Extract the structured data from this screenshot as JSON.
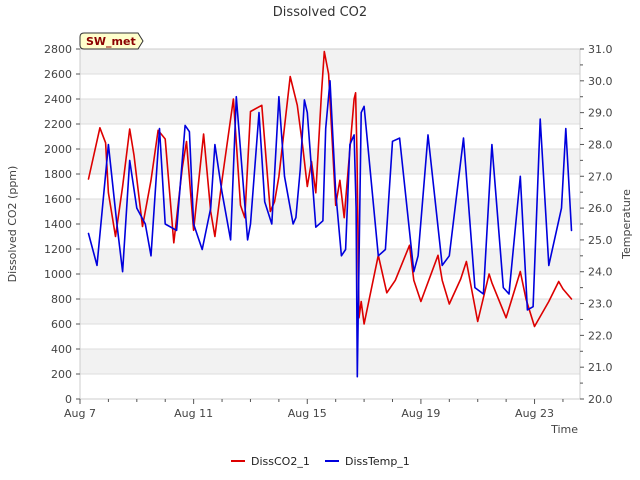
{
  "chart_data": {
    "type": "line",
    "title": "Dissolved CO2",
    "xlabel": "Time",
    "ylabel": "Dissolved CO2 (ppm)",
    "y2label": "Temperature",
    "station_label": "SW_met",
    "xlim": [
      7,
      24.6
    ],
    "ylim": [
      0,
      2800
    ],
    "y2lim": [
      20.0,
      31.0
    ],
    "x_ticks": [
      7,
      11,
      15,
      19,
      23
    ],
    "x_tick_labels": [
      "Aug 7",
      "Aug 11",
      "Aug 15",
      "Aug 19",
      "Aug 23"
    ],
    "y_ticks": [
      0,
      200,
      400,
      600,
      800,
      1000,
      1200,
      1400,
      1600,
      1800,
      2000,
      2200,
      2400,
      2600,
      2800
    ],
    "y2_ticks": [
      20.0,
      21.0,
      22.0,
      23.0,
      24.0,
      25.0,
      26.0,
      27.0,
      28.0,
      29.0,
      30.0,
      31.0
    ],
    "y2_tick_labels": [
      "20.0",
      "21.0",
      "22.0",
      "23.0",
      "24.0",
      "25.0",
      "26.0",
      "27.0",
      "28.0",
      "29.0",
      "30.0",
      "31.0"
    ],
    "legend_position": "bottom-center",
    "series": [
      {
        "name": "DissCO2_1",
        "color": "#dd0000",
        "axis": "left",
        "x": [
          7.3,
          7.7,
          7.9,
          8.0,
          8.25,
          8.5,
          8.75,
          8.9,
          9.2,
          9.5,
          9.75,
          10.0,
          10.3,
          10.6,
          10.75,
          11.0,
          11.35,
          11.6,
          11.75,
          12.0,
          12.4,
          12.65,
          12.8,
          13.0,
          13.4,
          13.7,
          13.85,
          14.0,
          14.4,
          14.65,
          14.85,
          15.0,
          15.15,
          15.3,
          15.5,
          15.6,
          15.75,
          16.0,
          16.15,
          16.3,
          16.5,
          16.65,
          16.7,
          16.75,
          16.82,
          16.9,
          17.0,
          17.5,
          17.8,
          18.1,
          18.6,
          18.75,
          19.0,
          19.6,
          19.75,
          20.0,
          20.4,
          20.6,
          21.0,
          21.4,
          21.5,
          22.0,
          22.5,
          22.7,
          23.0,
          23.5,
          23.85,
          24.0,
          24.3
        ],
        "values": [
          1760,
          2170,
          2050,
          1650,
          1300,
          1700,
          2160,
          1950,
          1380,
          1750,
          2150,
          2080,
          1250,
          1850,
          2060,
          1350,
          2120,
          1500,
          1300,
          1750,
          2400,
          1550,
          1450,
          2300,
          2350,
          1500,
          1580,
          1780,
          2580,
          2350,
          2000,
          1700,
          1900,
          1650,
          2450,
          2780,
          2600,
          1550,
          1750,
          1450,
          2000,
          2400,
          2450,
          1950,
          650,
          780,
          600,
          1150,
          850,
          950,
          1230,
          950,
          780,
          1150,
          950,
          760,
          960,
          1100,
          620,
          1000,
          930,
          650,
          1020,
          800,
          580,
          780,
          940,
          880,
          800
        ]
      },
      {
        "name": "DissTemp_1",
        "color": "#0000dd",
        "axis": "right",
        "x": [
          7.3,
          7.6,
          8.0,
          8.3,
          8.5,
          8.75,
          9.0,
          9.3,
          9.5,
          9.8,
          10.0,
          10.4,
          10.7,
          10.85,
          11.0,
          11.3,
          11.6,
          11.75,
          12.0,
          12.3,
          12.5,
          12.9,
          13.0,
          13.3,
          13.5,
          13.75,
          14.0,
          14.2,
          14.5,
          14.6,
          14.75,
          14.9,
          15.0,
          15.3,
          15.55,
          15.65,
          15.8,
          16.0,
          16.2,
          16.35,
          16.5,
          16.65,
          16.72,
          16.76,
          16.9,
          17.0,
          17.5,
          17.75,
          18.0,
          18.25,
          18.75,
          18.9,
          19.25,
          19.75,
          20.0,
          20.5,
          20.9,
          21.2,
          21.5,
          21.9,
          22.1,
          22.5,
          22.75,
          22.95,
          23.2,
          23.5,
          23.95,
          24.1,
          24.3
        ],
        "values": [
          25.2,
          24.2,
          28.0,
          25.5,
          24.0,
          27.5,
          26.0,
          25.5,
          24.5,
          28.5,
          25.5,
          25.3,
          28.6,
          28.4,
          25.5,
          24.7,
          26.0,
          28.0,
          26.5,
          25.0,
          29.5,
          25.0,
          25.5,
          29.0,
          26.2,
          25.5,
          29.5,
          27.0,
          25.5,
          25.7,
          27.2,
          29.4,
          29.0,
          25.4,
          25.6,
          28.5,
          30.0,
          26.5,
          24.5,
          24.7,
          28.0,
          28.3,
          26.0,
          20.7,
          29.0,
          29.2,
          24.5,
          24.7,
          28.1,
          28.2,
          24.0,
          24.5,
          28.3,
          24.2,
          24.5,
          28.2,
          23.5,
          23.3,
          28.0,
          23.5,
          23.3,
          27.0,
          22.8,
          22.9,
          28.8,
          24.2,
          26.0,
          28.5,
          25.3
        ]
      }
    ]
  }
}
